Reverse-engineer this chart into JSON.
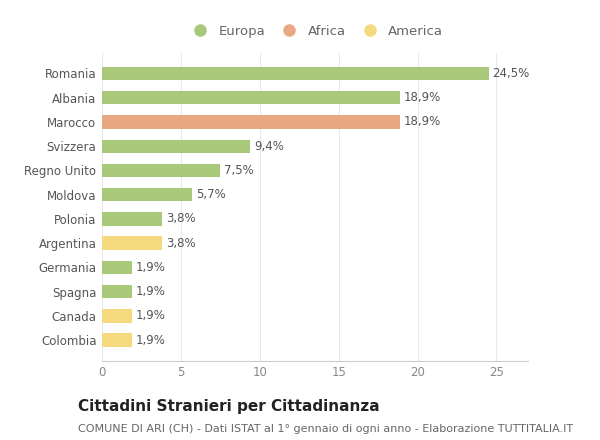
{
  "categories": [
    "Colombia",
    "Canada",
    "Spagna",
    "Germania",
    "Argentina",
    "Polonia",
    "Moldova",
    "Regno Unito",
    "Svizzera",
    "Marocco",
    "Albania",
    "Romania"
  ],
  "values": [
    1.9,
    1.9,
    1.9,
    1.9,
    3.8,
    3.8,
    5.7,
    7.5,
    9.4,
    18.9,
    18.9,
    24.5
  ],
  "labels": [
    "1,9%",
    "1,9%",
    "1,9%",
    "1,9%",
    "3,8%",
    "3,8%",
    "5,7%",
    "7,5%",
    "9,4%",
    "18,9%",
    "18,9%",
    "24,5%"
  ],
  "colors": [
    "#f5d97e",
    "#f5d97e",
    "#a8c87a",
    "#a8c87a",
    "#f5d97e",
    "#a8c87a",
    "#a8c87a",
    "#a8c87a",
    "#a8c87a",
    "#e8a882",
    "#a8c87a",
    "#a8c87a"
  ],
  "legend_labels": [
    "Europa",
    "Africa",
    "America"
  ],
  "legend_colors": [
    "#a8c87a",
    "#e8a882",
    "#f5d97e"
  ],
  "title": "Cittadini Stranieri per Cittadinanza",
  "subtitle": "COMUNE DI ARI (CH) - Dati ISTAT al 1° gennaio di ogni anno - Elaborazione TUTTITALIA.IT",
  "xlim": [
    0,
    27
  ],
  "xticks": [
    0,
    5,
    10,
    15,
    20,
    25
  ],
  "background_color": "#ffffff",
  "bar_height": 0.55,
  "title_fontsize": 11,
  "subtitle_fontsize": 8,
  "label_fontsize": 8.5,
  "tick_fontsize": 8.5,
  "legend_fontsize": 9.5
}
